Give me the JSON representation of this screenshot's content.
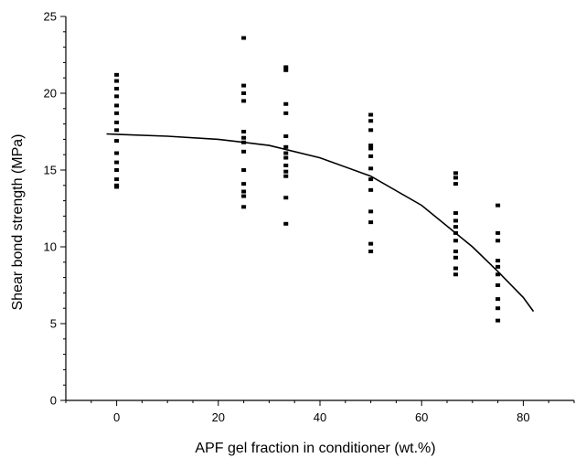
{
  "chart_data": {
    "type": "scatter",
    "xlabel": "APF gel fraction in conditioner (wt.%)",
    "ylabel": "Shear bond strength (MPa)",
    "xlim": [
      -10,
      90
    ],
    "ylim": [
      0,
      25
    ],
    "x_ticks": [
      0,
      20,
      40,
      60,
      80
    ],
    "y_ticks": [
      0,
      5,
      10,
      15,
      20,
      25
    ],
    "colors": {
      "marker": "#000000",
      "fit_line": "#000000",
      "axis": "#000000"
    },
    "series": [
      {
        "type": "scatter",
        "points": [
          [
            0,
            21.2
          ],
          [
            0,
            20.8
          ],
          [
            0,
            20.3
          ],
          [
            0,
            19.8
          ],
          [
            0,
            19.2
          ],
          [
            0,
            18.7
          ],
          [
            0,
            18.1
          ],
          [
            0,
            17.6
          ],
          [
            0,
            16.9
          ],
          [
            0,
            16.1
          ],
          [
            0,
            15.5
          ],
          [
            0,
            15.0
          ],
          [
            0,
            14.4
          ],
          [
            0,
            14.0
          ],
          [
            0,
            13.9
          ],
          [
            25,
            23.6
          ],
          [
            25,
            20.5
          ],
          [
            25,
            20.0
          ],
          [
            25,
            19.5
          ],
          [
            25,
            17.5
          ],
          [
            25,
            17.1
          ],
          [
            25,
            16.8
          ],
          [
            25,
            16.2
          ],
          [
            25,
            15.0
          ],
          [
            25,
            14.1
          ],
          [
            25,
            13.6
          ],
          [
            25,
            13.3
          ],
          [
            25,
            12.6
          ],
          [
            33.3,
            21.7
          ],
          [
            33.3,
            21.5
          ],
          [
            33.3,
            19.3
          ],
          [
            33.3,
            18.7
          ],
          [
            33.3,
            17.2
          ],
          [
            33.3,
            16.5
          ],
          [
            33.3,
            16.1
          ],
          [
            33.3,
            15.8
          ],
          [
            33.3,
            15.3
          ],
          [
            33.3,
            14.9
          ],
          [
            33.3,
            14.6
          ],
          [
            33.3,
            13.2
          ],
          [
            33.3,
            11.5
          ],
          [
            50,
            18.6
          ],
          [
            50,
            18.2
          ],
          [
            50,
            17.6
          ],
          [
            50,
            16.6
          ],
          [
            50,
            16.4
          ],
          [
            50,
            15.9
          ],
          [
            50,
            15.1
          ],
          [
            50,
            14.4
          ],
          [
            50,
            13.7
          ],
          [
            50,
            12.3
          ],
          [
            50,
            11.6
          ],
          [
            50,
            10.2
          ],
          [
            50,
            9.7
          ],
          [
            66.7,
            14.8
          ],
          [
            66.7,
            14.5
          ],
          [
            66.7,
            14.1
          ],
          [
            66.7,
            12.2
          ],
          [
            66.7,
            11.7
          ],
          [
            66.7,
            11.3
          ],
          [
            66.7,
            10.9
          ],
          [
            66.7,
            10.4
          ],
          [
            66.7,
            9.7
          ],
          [
            66.7,
            9.3
          ],
          [
            66.7,
            8.6
          ],
          [
            66.7,
            8.2
          ],
          [
            75,
            12.7
          ],
          [
            75,
            10.9
          ],
          [
            75,
            10.4
          ],
          [
            75,
            9.1
          ],
          [
            75,
            8.7
          ],
          [
            75,
            8.2
          ],
          [
            75,
            7.5
          ],
          [
            75,
            6.6
          ],
          [
            75,
            6.0
          ],
          [
            75,
            5.2
          ]
        ]
      },
      {
        "type": "line",
        "points": [
          [
            -2,
            17.35
          ],
          [
            10,
            17.2
          ],
          [
            20,
            17.0
          ],
          [
            30,
            16.6
          ],
          [
            40,
            15.8
          ],
          [
            50,
            14.6
          ],
          [
            60,
            12.7
          ],
          [
            70,
            10.0
          ],
          [
            75,
            8.4
          ],
          [
            80,
            6.7
          ],
          [
            82,
            5.8
          ]
        ]
      }
    ]
  }
}
